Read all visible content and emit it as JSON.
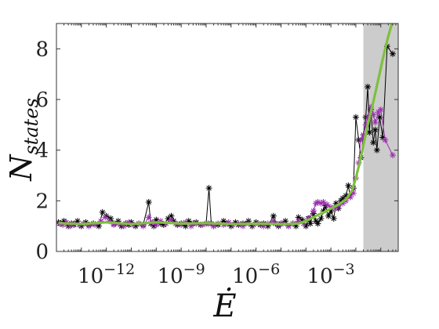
{
  "chart_data": {
    "type": "line",
    "xscale": "log",
    "xlim": [
      1e-14,
      0.5
    ],
    "ylim": [
      0,
      9
    ],
    "xlabel": "Ė",
    "ylabel": "N_states",
    "xticks": [
      {
        "value": 1e-12,
        "base": "10",
        "exp": "−12"
      },
      {
        "value": 1e-09,
        "base": "10",
        "exp": "−9"
      },
      {
        "value": 1e-06,
        "base": "10",
        "exp": "−6"
      },
      {
        "value": 0.001,
        "base": "10",
        "exp": "−3"
      }
    ],
    "yticks": [
      0,
      2,
      4,
      6,
      8
    ],
    "shaded_region": {
      "x_from": 0.02,
      "x_to": 0.5,
      "color": "#cccccc"
    },
    "series": [
      {
        "color": "#000000",
        "marker": "asterisk",
        "points": [
          [
            1.2e-14,
            1.15
          ],
          [
            1.5e-14,
            1.1
          ],
          [
            2e-14,
            1.2
          ],
          [
            3e-14,
            1.0
          ],
          [
            4e-14,
            1.1
          ],
          [
            5e-14,
            1.05
          ],
          [
            7e-14,
            1.2
          ],
          [
            1e-13,
            1.0
          ],
          [
            1.5e-13,
            1.15
          ],
          [
            2e-13,
            1.05
          ],
          [
            3e-13,
            1.1
          ],
          [
            5e-13,
            1.0
          ],
          [
            7e-13,
            1.55
          ],
          [
            1e-12,
            1.4
          ],
          [
            1.5e-12,
            1.3
          ],
          [
            2e-12,
            1.1
          ],
          [
            3e-12,
            1.2
          ],
          [
            4e-12,
            1.0
          ],
          [
            6e-12,
            1.1
          ],
          [
            8e-12,
            1.05
          ],
          [
            1e-11,
            1.15
          ],
          [
            1.5e-11,
            1.0
          ],
          [
            2e-11,
            1.1
          ],
          [
            3e-11,
            1.05
          ],
          [
            5e-11,
            1.95
          ],
          [
            6e-11,
            1.1
          ],
          [
            8e-11,
            1.0
          ],
          [
            1e-10,
            1.25
          ],
          [
            1.5e-10,
            1.1
          ],
          [
            2e-10,
            1.05
          ],
          [
            3e-10,
            1.3
          ],
          [
            4e-10,
            1.4
          ],
          [
            5e-10,
            1.2
          ],
          [
            7e-10,
            1.05
          ],
          [
            1e-09,
            1.1
          ],
          [
            1.5e-09,
            1.0
          ],
          [
            2e-09,
            1.2
          ],
          [
            3e-09,
            1.1
          ],
          [
            4e-09,
            1.15
          ],
          [
            6e-09,
            1.05
          ],
          [
            1e-08,
            1.1
          ],
          [
            1.3e-08,
            2.5
          ],
          [
            1.6e-08,
            1.1
          ],
          [
            2e-08,
            1.0
          ],
          [
            3e-08,
            1.05
          ],
          [
            5e-08,
            1.2
          ],
          [
            7e-08,
            1.1
          ],
          [
            1e-07,
            1.0
          ],
          [
            1.5e-07,
            1.15
          ],
          [
            2e-07,
            1.05
          ],
          [
            3e-07,
            1.1
          ],
          [
            5e-07,
            1.2
          ],
          [
            7e-07,
            1.0
          ],
          [
            1e-06,
            1.15
          ],
          [
            1.5e-06,
            1.05
          ],
          [
            2e-06,
            1.1
          ],
          [
            3e-06,
            1.0
          ],
          [
            5e-06,
            1.4
          ],
          [
            6e-06,
            1.1
          ],
          [
            8e-06,
            1.0
          ],
          [
            1e-05,
            1.1
          ],
          [
            1.5e-05,
            1.2
          ],
          [
            2e-05,
            1.0
          ],
          [
            3e-05,
            1.1
          ],
          [
            4e-05,
            1.0
          ],
          [
            5e-05,
            1.35
          ],
          [
            7e-05,
            1.25
          ],
          [
            0.0001,
            1.0
          ],
          [
            0.00013,
            1.3
          ],
          [
            0.00015,
            1.1
          ],
          [
            0.0002,
            1.5
          ],
          [
            0.00025,
            1.2
          ],
          [
            0.0003,
            1.1
          ],
          [
            0.0004,
            1.3
          ],
          [
            0.0005,
            1.6
          ],
          [
            0.0006,
            1.8
          ],
          [
            0.0008,
            1.4
          ],
          [
            0.001,
            1.6
          ],
          [
            0.0013,
            1.3
          ],
          [
            0.0016,
            1.9
          ],
          [
            0.002,
            1.7
          ],
          [
            0.0025,
            2.0
          ],
          [
            0.003,
            2.1
          ],
          [
            0.004,
            2.2
          ],
          [
            0.005,
            2.6
          ],
          [
            0.006,
            2.15
          ],
          [
            0.008,
            2.5
          ],
          [
            0.01,
            5.3
          ],
          [
            0.013,
            4.4
          ],
          [
            0.016,
            3.7
          ],
          [
            0.02,
            4.6
          ],
          [
            0.025,
            5.3
          ],
          [
            0.03,
            6.5
          ],
          [
            0.035,
            4.7
          ],
          [
            0.04,
            5.6
          ],
          [
            0.05,
            4.3
          ],
          [
            0.06,
            4.8
          ],
          [
            0.07,
            4.0
          ],
          [
            0.09,
            5.3
          ],
          [
            0.12,
            4.5
          ],
          [
            0.18,
            8.1
          ],
          [
            0.3,
            7.8
          ]
        ]
      },
      {
        "color": "#9b2fae",
        "marker": "asterisk",
        "points": [
          [
            1.3e-14,
            1.1
          ],
          [
            1.8e-14,
            1.05
          ],
          [
            2.5e-14,
            1.15
          ],
          [
            3.5e-14,
            1.0
          ],
          [
            5e-14,
            1.1
          ],
          [
            8e-14,
            1.05
          ],
          [
            1.2e-13,
            1.1
          ],
          [
            2e-13,
            1.0
          ],
          [
            3.5e-13,
            1.05
          ],
          [
            6e-13,
            1.2
          ],
          [
            9e-13,
            1.35
          ],
          [
            1.3e-12,
            1.2
          ],
          [
            2e-12,
            1.05
          ],
          [
            3e-12,
            1.1
          ],
          [
            5e-12,
            1.0
          ],
          [
            8e-12,
            1.15
          ],
          [
            1.2e-11,
            1.05
          ],
          [
            2e-11,
            1.1
          ],
          [
            3e-11,
            1.0
          ],
          [
            5e-11,
            1.35
          ],
          [
            7e-11,
            1.15
          ],
          [
            1e-10,
            1.05
          ],
          [
            1.5e-10,
            1.2
          ],
          [
            2.5e-10,
            1.1
          ],
          [
            4e-10,
            1.25
          ],
          [
            6e-10,
            1.1
          ],
          [
            1e-09,
            1.05
          ],
          [
            1.5e-09,
            1.15
          ],
          [
            2.5e-09,
            1.0
          ],
          [
            4e-09,
            1.1
          ],
          [
            7e-09,
            1.05
          ],
          [
            1.2e-08,
            1.1
          ],
          [
            2e-08,
            1.0
          ],
          [
            3e-08,
            1.1
          ],
          [
            5e-08,
            1.05
          ],
          [
            8e-08,
            1.15
          ],
          [
            1.2e-07,
            1.05
          ],
          [
            2e-07,
            1.1
          ],
          [
            3e-07,
            1.0
          ],
          [
            5e-07,
            1.1
          ],
          [
            8e-07,
            1.05
          ],
          [
            1.2e-06,
            1.1
          ],
          [
            2e-06,
            1.0
          ],
          [
            3e-06,
            1.1
          ],
          [
            5e-06,
            1.2
          ],
          [
            8e-06,
            1.05
          ],
          [
            1.2e-05,
            1.1
          ],
          [
            2e-05,
            1.0
          ],
          [
            3e-05,
            1.1
          ],
          [
            5e-05,
            1.2
          ],
          [
            8e-05,
            1.1
          ],
          [
            0.00012,
            1.3
          ],
          [
            0.0002,
            1.6
          ],
          [
            0.00025,
            1.9
          ],
          [
            0.0003,
            1.95
          ],
          [
            0.0004,
            1.9
          ],
          [
            0.0005,
            1.95
          ],
          [
            0.0007,
            1.85
          ],
          [
            0.001,
            1.75
          ],
          [
            0.0015,
            1.7
          ],
          [
            0.002,
            1.8
          ],
          [
            0.003,
            1.9
          ],
          [
            0.004,
            2.0
          ],
          [
            0.006,
            2.15
          ],
          [
            0.008,
            2.3
          ],
          [
            0.01,
            2.9
          ],
          [
            0.013,
            3.5
          ],
          [
            0.016,
            4.4
          ],
          [
            0.02,
            4.6
          ],
          [
            0.025,
            5.0
          ],
          [
            0.03,
            5.3
          ],
          [
            0.04,
            5.7
          ],
          [
            0.05,
            5.4
          ],
          [
            0.06,
            5.1
          ],
          [
            0.08,
            5.5
          ],
          [
            0.1,
            5.6
          ],
          [
            0.15,
            4.4
          ],
          [
            0.3,
            3.8
          ]
        ]
      },
      {
        "color": "#7fbf3f",
        "marker": "none",
        "points": [
          [
            1.2e-14,
            1.12
          ],
          [
            1e-13,
            1.08
          ],
          [
            1e-12,
            1.15
          ],
          [
            1e-11,
            1.08
          ],
          [
            1e-10,
            1.15
          ],
          [
            1e-09,
            1.1
          ],
          [
            1e-08,
            1.12
          ],
          [
            1e-07,
            1.08
          ],
          [
            1e-06,
            1.1
          ],
          [
            1e-05,
            1.08
          ],
          [
            5e-05,
            1.1
          ],
          [
            0.0001,
            1.2
          ],
          [
            0.0002,
            1.35
          ],
          [
            0.0004,
            1.5
          ],
          [
            0.0007,
            1.6
          ],
          [
            0.001,
            1.7
          ],
          [
            0.002,
            1.85
          ],
          [
            0.004,
            2.05
          ],
          [
            0.007,
            2.4
          ],
          [
            0.01,
            2.9
          ],
          [
            0.015,
            3.6
          ],
          [
            0.02,
            4.2
          ],
          [
            0.03,
            5.0
          ],
          [
            0.05,
            5.9
          ],
          [
            0.08,
            6.8
          ],
          [
            0.12,
            7.6
          ],
          [
            0.2,
            8.5
          ],
          [
            0.3,
            9.1
          ]
        ]
      }
    ]
  }
}
